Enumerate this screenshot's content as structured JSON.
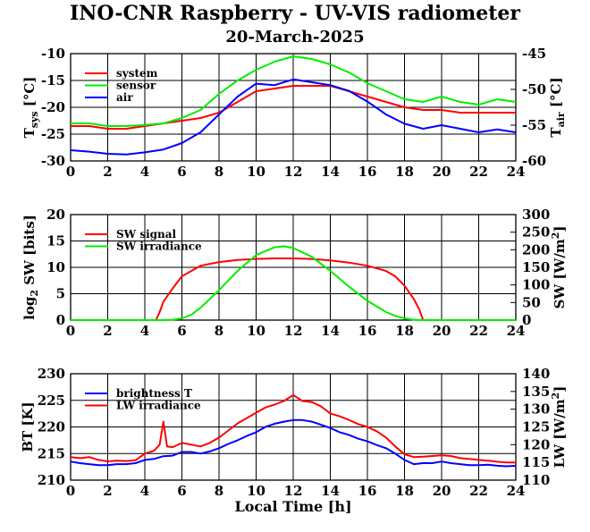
{
  "figure": {
    "title": "INO-CNR Raspberry - UV-VIS radiometer",
    "subtitle": "20-March-2025"
  },
  "chart_data": [
    {
      "type": "line",
      "panel": "top",
      "xlabel": "",
      "ylabel": "T_sys [°C]",
      "ylabel_right": "T_air [°C]",
      "xlim": [
        0,
        24
      ],
      "ylim": [
        -30,
        -10
      ],
      "ylim_right": [
        -60,
        -45
      ],
      "xticks": [
        "0",
        "2",
        "4",
        "6",
        "8",
        "10",
        "12",
        "14",
        "16",
        "18",
        "20",
        "22",
        "24"
      ],
      "yticks": [
        "-30",
        "-25",
        "-20",
        "-15",
        "-10"
      ],
      "yticks_right": [
        "-60",
        "-55",
        "-50",
        "-45"
      ],
      "grid": true,
      "legend": "top-left",
      "series": [
        {
          "name": "system",
          "color": "#ff0000",
          "axis": "left",
          "x": [
            0,
            1,
            2,
            3,
            4,
            5,
            6,
            7,
            8,
            9,
            10,
            11,
            12,
            13,
            14,
            15,
            16,
            17,
            18,
            19,
            20,
            21,
            22,
            23,
            24
          ],
          "y": [
            -23.5,
            -23.5,
            -24,
            -24,
            -23.5,
            -23,
            -22.5,
            -22,
            -21,
            -19,
            -17,
            -16.5,
            -16,
            -16,
            -16,
            -17,
            -18,
            -19,
            -20,
            -20.5,
            -20.5,
            -21,
            -21,
            -21,
            -21
          ]
        },
        {
          "name": "sensor",
          "color": "#00ee00",
          "axis": "left",
          "x": [
            0,
            1,
            2,
            3,
            4,
            5,
            6,
            7,
            8,
            9,
            10,
            11,
            12,
            13,
            14,
            15,
            16,
            17,
            18,
            19,
            20,
            21,
            22,
            23,
            24
          ],
          "y": [
            -23,
            -23,
            -23.5,
            -23.5,
            -23.3,
            -23,
            -22,
            -20.5,
            -17.5,
            -15,
            -13,
            -11.5,
            -10.5,
            -11,
            -12,
            -13.5,
            -15.5,
            -17,
            -18.5,
            -19,
            -18,
            -19,
            -19.5,
            -18.5,
            -19
          ]
        },
        {
          "name": "air",
          "color": "#0000ff",
          "axis": "right",
          "x": [
            0,
            1,
            2,
            3,
            4,
            5,
            6,
            7,
            8,
            9,
            10,
            11,
            12,
            13,
            14,
            15,
            16,
            17,
            18,
            19,
            20,
            21,
            22,
            23,
            24
          ],
          "y": [
            -58.5,
            -58.7,
            -59,
            -59.1,
            -58.8,
            -58.4,
            -57.5,
            -56,
            -53.5,
            -51,
            -49.2,
            -49.4,
            -48.6,
            -49,
            -49.4,
            -50.2,
            -51.7,
            -53.5,
            -54.8,
            -55.5,
            -55,
            -55.5,
            -56,
            -55.6,
            -56
          ]
        }
      ]
    },
    {
      "type": "line",
      "panel": "middle",
      "xlabel": "",
      "ylabel": "log2 SW [bits]",
      "ylabel_right": "SW [W/m2]",
      "xlim": [
        0,
        24
      ],
      "ylim": [
        0,
        20
      ],
      "ylim_right": [
        0,
        300
      ],
      "xticks": [
        "0",
        "2",
        "4",
        "6",
        "8",
        "10",
        "12",
        "14",
        "16",
        "18",
        "20",
        "22",
        "24"
      ],
      "yticks": [
        "0",
        "5",
        "10",
        "15",
        "20"
      ],
      "yticks_right": [
        "0",
        "50",
        "100",
        "150",
        "200",
        "250",
        "300"
      ],
      "grid": true,
      "legend": "top-left",
      "series": [
        {
          "name": "SW signal",
          "color": "#ff0000",
          "axis": "left",
          "x": [
            0,
            4.6,
            4.8,
            5,
            5.5,
            6,
            7,
            8,
            9,
            10,
            11,
            12,
            13,
            14,
            15,
            16,
            17,
            17.5,
            18,
            18.5,
            18.8,
            19,
            24
          ],
          "y": [
            0,
            0,
            1.5,
            3.5,
            6,
            8.3,
            10.3,
            11,
            11.4,
            11.6,
            11.7,
            11.7,
            11.6,
            11.3,
            10.9,
            10.3,
            9.3,
            8.3,
            6.5,
            4,
            2,
            0,
            0
          ]
        },
        {
          "name": "SW irradiance",
          "color": "#00ee00",
          "axis": "right",
          "x": [
            0,
            5,
            5.5,
            6,
            6.5,
            7,
            8,
            9,
            10,
            11,
            11.5,
            12,
            13,
            14,
            15,
            16,
            17,
            17.5,
            18,
            18.5,
            19,
            24
          ],
          "y": [
            0,
            0,
            1,
            5,
            15,
            35,
            85,
            140,
            185,
            207,
            210,
            205,
            180,
            140,
            95,
            55,
            23,
            12,
            5,
            1,
            0,
            0
          ]
        }
      ]
    },
    {
      "type": "line",
      "panel": "bottom",
      "xlabel": "Local Time [h]",
      "ylabel": "BT [K]",
      "ylabel_right": "LW [W/m2]",
      "xlim": [
        0,
        24
      ],
      "ylim": [
        210,
        230
      ],
      "ylim_right": [
        110,
        140
      ],
      "xticks": [
        "0",
        "2",
        "4",
        "6",
        "8",
        "10",
        "12",
        "14",
        "16",
        "18",
        "20",
        "22",
        "24"
      ],
      "yticks": [
        "210",
        "215",
        "220",
        "225",
        "230"
      ],
      "yticks_right": [
        "110",
        "115",
        "120",
        "125",
        "130",
        "135",
        "140"
      ],
      "grid": true,
      "legend": "top-left",
      "series": [
        {
          "name": "brightness T",
          "color": "#0000ff",
          "axis": "left",
          "x": [
            0,
            0.5,
            1,
            1.5,
            2,
            2.5,
            3,
            3.5,
            4,
            4.5,
            5,
            5.5,
            6,
            6.5,
            7,
            7.5,
            8,
            8.5,
            9,
            9.5,
            10,
            10.5,
            11,
            11.5,
            12,
            12.5,
            13,
            13.5,
            14,
            14.5,
            15,
            15.5,
            16,
            16.5,
            17,
            17.5,
            18,
            18.5,
            19,
            19.5,
            20,
            20.5,
            21,
            21.5,
            22,
            22.5,
            23,
            23.5,
            24
          ],
          "y": [
            213.5,
            213.2,
            213,
            212.8,
            212.8,
            213,
            213,
            213.2,
            213.8,
            214,
            214.5,
            214.6,
            215.3,
            215.3,
            215,
            215.4,
            216,
            216.8,
            217.5,
            218.3,
            219,
            220,
            220.6,
            221,
            221.3,
            221.3,
            221,
            220.4,
            219.8,
            219,
            218.5,
            217.8,
            217.3,
            216.6,
            216,
            215,
            213.8,
            213,
            213.2,
            213.2,
            213.5,
            213.2,
            213,
            212.8,
            212.8,
            212.9,
            212.7,
            212.6,
            212.7
          ]
        },
        {
          "name": "LW irradiance",
          "color": "#ff0000",
          "axis": "right",
          "x": [
            0,
            0.5,
            1,
            1.5,
            2,
            2.5,
            3,
            3.5,
            4,
            4.5,
            4.8,
            5,
            5.2,
            5.5,
            6,
            6.5,
            7,
            7.5,
            8,
            8.5,
            9,
            9.5,
            10,
            10.5,
            11,
            11.5,
            12,
            12.5,
            13,
            13.5,
            14,
            14.5,
            15,
            15.5,
            16,
            16.5,
            17,
            17.5,
            18,
            18.5,
            19,
            19.5,
            20,
            20.5,
            21,
            21.5,
            22,
            22.5,
            23,
            23.5,
            24
          ],
          "y": [
            116.5,
            116.2,
            116.5,
            115.7,
            115.3,
            115.5,
            115.4,
            115.6,
            117.5,
            118.3,
            120,
            126.5,
            119.5,
            119.3,
            120.5,
            120,
            119.5,
            120.5,
            122,
            124,
            126,
            127.5,
            129,
            130.5,
            131.3,
            132.3,
            134,
            132.3,
            132,
            130.8,
            128.8,
            128,
            127,
            125.8,
            125,
            123.8,
            122,
            119.5,
            117.3,
            116.5,
            116.6,
            116.8,
            117,
            116.8,
            116.2,
            116,
            115.7,
            115.5,
            115.2,
            115,
            115
          ]
        }
      ]
    }
  ]
}
